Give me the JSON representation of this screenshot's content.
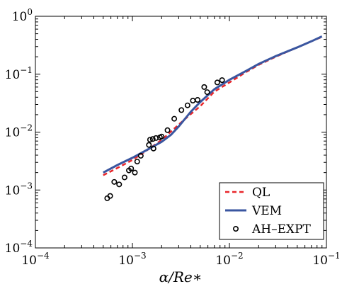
{
  "chart_data": {
    "type": "line",
    "xlabel": "α/Re∗",
    "ylabel": "",
    "xscale": "log",
    "yscale": "log",
    "xlim": [
      0.0001,
      0.1
    ],
    "ylim": [
      0.0001,
      1
    ],
    "grid": false,
    "legend_position": "bottom-right",
    "x_ticks": [
      {
        "value": 0.0001,
        "base": "10",
        "exp": "−4"
      },
      {
        "value": 0.001,
        "base": "10",
        "exp": "−3"
      },
      {
        "value": 0.01,
        "base": "10",
        "exp": "−2"
      },
      {
        "value": 0.1,
        "base": "10",
        "exp": "−1"
      }
    ],
    "y_ticks": [
      {
        "value": 0.0001,
        "base": "10",
        "exp": "−4"
      },
      {
        "value": 0.001,
        "base": "10",
        "exp": "−3"
      },
      {
        "value": 0.01,
        "base": "10",
        "exp": "−2"
      },
      {
        "value": 0.1,
        "base": "10",
        "exp": "−1"
      },
      {
        "value": 1,
        "base": "10",
        "exp": "0"
      }
    ],
    "series": [
      {
        "name": "QL",
        "style": "dashed",
        "color": "#e8262a",
        "x": [
          0.0005,
          0.0007,
          0.001,
          0.0015,
          0.002,
          0.003,
          0.004,
          0.005,
          0.007,
          0.01,
          0.015,
          0.02,
          0.03,
          0.05,
          0.07,
          0.09
        ],
        "y": [
          0.0018,
          0.0024,
          0.0033,
          0.0052,
          0.0073,
          0.0135,
          0.0205,
          0.028,
          0.05,
          0.072,
          0.11,
          0.145,
          0.2,
          0.29,
          0.37,
          0.44
        ]
      },
      {
        "name": "VEM",
        "style": "solid",
        "color": "#3a56a0",
        "x": [
          0.0005,
          0.0007,
          0.001,
          0.0015,
          0.002,
          0.0025,
          0.003,
          0.004,
          0.005,
          0.007,
          0.01,
          0.015,
          0.02,
          0.03,
          0.05,
          0.07,
          0.09
        ],
        "y": [
          0.002,
          0.0027,
          0.0036,
          0.0052,
          0.0068,
          0.009,
          0.0125,
          0.0225,
          0.033,
          0.055,
          0.08,
          0.115,
          0.15,
          0.205,
          0.29,
          0.37,
          0.45
        ]
      },
      {
        "name": "AH–EXPT",
        "style": "markers",
        "color": "#000000",
        "x": [
          0.00055,
          0.00059,
          0.00065,
          0.00073,
          0.00083,
          0.00092,
          0.00097,
          0.00106,
          0.00112,
          0.00122,
          0.00148,
          0.00152,
          0.00162,
          0.00165,
          0.00175,
          0.00192,
          0.002,
          0.0023,
          0.0027,
          0.0032,
          0.0037,
          0.0042,
          0.0047,
          0.0055,
          0.0059,
          0.0075,
          0.0084
        ],
        "y": [
          0.00072,
          0.00079,
          0.00138,
          0.00125,
          0.00165,
          0.00218,
          0.00235,
          0.002,
          0.0031,
          0.0039,
          0.006,
          0.0074,
          0.0076,
          0.0052,
          0.0079,
          0.0081,
          0.0084,
          0.0108,
          0.017,
          0.024,
          0.029,
          0.035,
          0.036,
          0.06,
          0.049,
          0.072,
          0.079
        ]
      }
    ]
  }
}
